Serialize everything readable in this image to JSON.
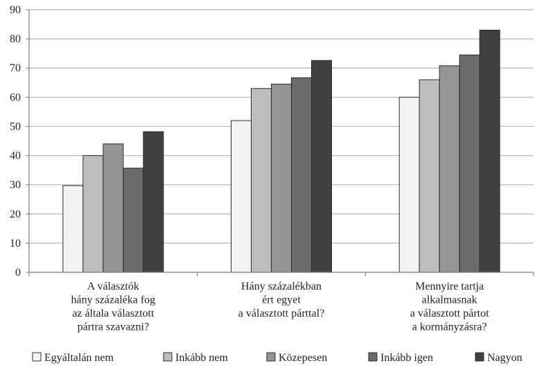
{
  "chart_data": {
    "type": "bar",
    "ylim": [
      0,
      90
    ],
    "yticks": [
      0,
      10,
      20,
      30,
      40,
      50,
      60,
      70,
      80,
      90
    ],
    "grid": true,
    "legend_position": "bottom",
    "categories": [
      [
        "A választók",
        "hány százaléka fog",
        "az általa választott",
        "pártra szavazni?"
      ],
      [
        "Hány százalékban",
        "ért egyet",
        "a választott párttal?"
      ],
      [
        "Mennyire tartja",
        "alkalmasnak",
        "a választott pártot",
        "a kormányzásra?"
      ]
    ],
    "series": [
      {
        "name": "Egyáltalán nem",
        "color": "#f2f2f2",
        "values": [
          29.7,
          52.0,
          60.0
        ]
      },
      {
        "name": "Inkább nem",
        "color": "#bdbdbd",
        "values": [
          40.0,
          63.0,
          66.0
        ]
      },
      {
        "name": "Közepesen",
        "color": "#969696",
        "values": [
          44.0,
          64.5,
          70.8
        ]
      },
      {
        "name": "Inkább igen",
        "color": "#6b6b6b",
        "values": [
          35.7,
          66.7,
          74.5
        ]
      },
      {
        "name": "Nagyon",
        "color": "#404040",
        "values": [
          48.2,
          72.6,
          83.0
        ]
      }
    ]
  }
}
